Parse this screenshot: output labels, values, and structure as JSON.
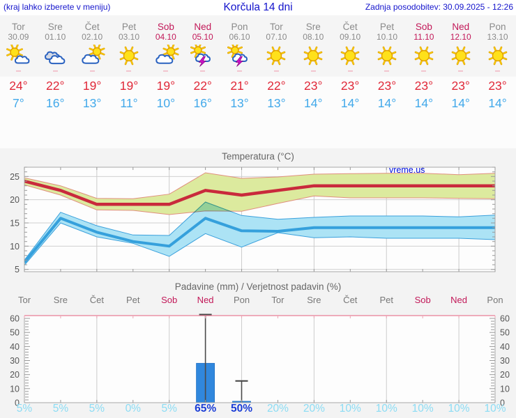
{
  "topbar": {
    "hint": "(kraj lahko izberete v meniju)",
    "title": "Korčula 14 dni",
    "updated": "Zadnja posodobitev: 30.09.2025 - 12:26"
  },
  "watermark": "vreme.us",
  "forecast": {
    "days": [
      {
        "name": "Tor",
        "date": "30.09",
        "icon": "mostly-sunny",
        "hi": "24°",
        "lo": "7°",
        "weekend": false
      },
      {
        "name": "Sre",
        "date": "01.10",
        "icon": "cloudy",
        "hi": "22°",
        "lo": "16°",
        "weekend": false
      },
      {
        "name": "Čet",
        "date": "02.10",
        "icon": "partly-cloudy",
        "hi": "19°",
        "lo": "13°",
        "weekend": false
      },
      {
        "name": "Pet",
        "date": "03.10",
        "icon": "sunny",
        "hi": "19°",
        "lo": "11°",
        "weekend": false
      },
      {
        "name": "Sob",
        "date": "04.10",
        "icon": "partly-cloudy",
        "hi": "19°",
        "lo": "10°",
        "weekend": true
      },
      {
        "name": "Ned",
        "date": "05.10",
        "icon": "thunderstorm",
        "hi": "22°",
        "lo": "16°",
        "weekend": true
      },
      {
        "name": "Pon",
        "date": "06.10",
        "icon": "thunderstorm",
        "hi": "21°",
        "lo": "13°",
        "weekend": false
      },
      {
        "name": "Tor",
        "date": "07.10",
        "icon": "sunny",
        "hi": "22°",
        "lo": "13°",
        "weekend": false
      },
      {
        "name": "Sre",
        "date": "08.10",
        "icon": "sunny",
        "hi": "23°",
        "lo": "14°",
        "weekend": false
      },
      {
        "name": "Čet",
        "date": "09.10",
        "icon": "sunny",
        "hi": "23°",
        "lo": "14°",
        "weekend": false
      },
      {
        "name": "Pet",
        "date": "10.10",
        "icon": "sunny",
        "hi": "23°",
        "lo": "14°",
        "weekend": false
      },
      {
        "name": "Sob",
        "date": "11.10",
        "icon": "sunny",
        "hi": "23°",
        "lo": "14°",
        "weekend": true
      },
      {
        "name": "Ned",
        "date": "12.10",
        "icon": "sunny",
        "hi": "23°",
        "lo": "14°",
        "weekend": true
      },
      {
        "name": "Pon",
        "date": "13.10",
        "icon": "sunny",
        "hi": "23°",
        "lo": "14°",
        "weekend": false
      }
    ]
  },
  "chart_data": [
    {
      "type": "line",
      "title": "Temperatura (°C)",
      "x_days": [
        "Tor",
        "Sre",
        "Čet",
        "Pet",
        "Sob",
        "Ned",
        "Pon",
        "Tor",
        "Sre",
        "Čet",
        "Pet",
        "Sob",
        "Ned",
        "Pon"
      ],
      "ylim": [
        4.5,
        27
      ],
      "yticks": [
        5,
        10,
        15,
        20,
        25
      ],
      "grid_x_day_indices": [
        2,
        4,
        6,
        8,
        10,
        12
      ],
      "legend": "none",
      "series": [
        {
          "name": "max-temp",
          "color": "#c92a3c",
          "values": [
            24,
            22,
            19,
            19,
            19,
            22,
            21,
            22,
            23,
            23,
            23,
            23,
            23,
            23
          ],
          "band": {
            "upper": [
              24.7,
              23.0,
              20.3,
              20.2,
              21.2,
              25.8,
              24.6,
              24.9,
              25.5,
              25.6,
              25.7,
              25.7,
              25.4,
              25.7
            ],
            "lower": [
              23.2,
              21.0,
              17.8,
              17.7,
              16.8,
              17.6,
              17.5,
              19.2,
              20.8,
              20.4,
              20.4,
              20.4,
              20.3,
              20.2
            ],
            "fill": "#dcea9e",
            "edge": "#e08f7d",
            "blend": false
          }
        },
        {
          "name": "min-temp",
          "color": "#35a0dc",
          "values": [
            6.5,
            16,
            13,
            11,
            10,
            16,
            13.3,
            13.2,
            14,
            14,
            14,
            14,
            14,
            14
          ],
          "band": {
            "upper": [
              7.0,
              17.3,
              14.4,
              12.4,
              12.3,
              19.5,
              16.6,
              15.8,
              16.2,
              16.5,
              16.5,
              16.5,
              16.3,
              16.7
            ],
            "lower": [
              5.9,
              15.0,
              12.0,
              10.6,
              7.8,
              12.7,
              9.8,
              12.9,
              11.8,
              12.0,
              11.7,
              11.7,
              11.7,
              11.4
            ],
            "fill": "#ace3f5",
            "edge": "#3aa0dc",
            "blend": true
          }
        }
      ]
    },
    {
      "type": "bar",
      "title": "Padavine (mm) / Verjetnost padavin (%)",
      "categories": [
        "Tor",
        "Sre",
        "Čet",
        "Pet",
        "Sob",
        "Ned",
        "Pon",
        "Tor",
        "Sre",
        "Čet",
        "Pet",
        "Sob",
        "Ned",
        "Pon"
      ],
      "weekend_indices": [
        4,
        5,
        11,
        12
      ],
      "ylim": [
        0,
        62
      ],
      "yticks": [
        0,
        10,
        20,
        30,
        40,
        50,
        60
      ],
      "grid_x_day_indices": [
        2,
        4,
        6,
        8,
        10,
        12
      ],
      "y_axis_sides": "both",
      "precip_mm": [
        0,
        0,
        0,
        0,
        0,
        28,
        1,
        0,
        0,
        0,
        0,
        0,
        0,
        0
      ],
      "whisker_max_mm": [
        null,
        null,
        null,
        null,
        null,
        62.7,
        15.5,
        null,
        null,
        null,
        null,
        null,
        null,
        null
      ],
      "probability_labels": [
        "5%",
        "5%",
        "5%",
        "0%",
        "5%",
        "65%",
        "50%",
        "20%",
        "20%",
        "10%",
        "10%",
        "10%",
        "10%",
        "10%"
      ],
      "probability_pct": [
        5,
        5,
        5,
        0,
        5,
        65,
        50,
        20,
        20,
        10,
        10,
        10,
        10,
        10
      ],
      "emphasized_indices": [
        5,
        6
      ],
      "bar_color": "#3087dd"
    }
  ],
  "colors": {
    "link_blue": "#1414cc",
    "weekday_gray": "#8a8a8a",
    "weekend_red": "#c21858",
    "high_temp_red": "#e02838",
    "low_temp_blue": "#42a9ea",
    "probability_light": "#8bdcf4",
    "probability_emphasis": "#1b3ed6",
    "whisker_gray": "#4a4a4a",
    "axis_gray": "#a8a8a8",
    "precip_top_border_pink": "#e87e96"
  }
}
